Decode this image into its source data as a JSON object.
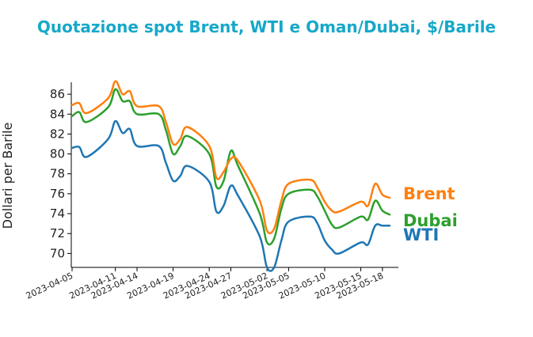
{
  "chart_data": {
    "type": "line",
    "title": "Quotazione spot Brent, WTI e Oman/Dubai, $/Barile",
    "xlabel": "",
    "ylabel": "Dollari per Barile",
    "ylim": [
      68.6,
      87.2
    ],
    "yticks": [
      70,
      72,
      74,
      76,
      78,
      80,
      82,
      84,
      86
    ],
    "grid": false,
    "legend": "inline-right-labels",
    "x_tick_labels": [
      "2023-04-05",
      "2023-04-11",
      "2023-04-14",
      "2023-04-19",
      "2023-04-24",
      "2023-04-27",
      "2023-05-02",
      "2023-05-05",
      "2023-05-10",
      "2023-05-15",
      "2023-05-18"
    ],
    "x": [
      "2023-04-05",
      "2023-04-06",
      "2023-04-07",
      "2023-04-10",
      "2023-04-11",
      "2023-04-12",
      "2023-04-13",
      "2023-04-14",
      "2023-04-17",
      "2023-04-18",
      "2023-04-19",
      "2023-04-20",
      "2023-04-21",
      "2023-04-24",
      "2023-04-25",
      "2023-04-26",
      "2023-04-27",
      "2023-04-28",
      "2023-05-01",
      "2023-05-02",
      "2023-05-03",
      "2023-05-04",
      "2023-05-05",
      "2023-05-08",
      "2023-05-09",
      "2023-05-10",
      "2023-05-11",
      "2023-05-12",
      "2023-05-15",
      "2023-05-16",
      "2023-05-17",
      "2023-05-18",
      "2023-05-19"
    ],
    "series": [
      {
        "name": "Brent",
        "color": "#ff7f0e",
        "values": [
          84.9,
          85.1,
          84.1,
          85.6,
          87.3,
          86.0,
          86.3,
          84.8,
          84.8,
          83.2,
          81.0,
          81.5,
          82.7,
          80.8,
          77.6,
          78.2,
          79.5,
          79.3,
          75.3,
          72.3,
          72.5,
          75.3,
          77.0,
          77.4,
          76.6,
          75.2,
          74.3,
          74.2,
          75.2,
          74.8,
          77.0,
          75.9,
          75.6
        ]
      },
      {
        "name": "Dubai",
        "color": "#2ca02c",
        "values": [
          83.8,
          84.2,
          83.2,
          84.7,
          86.5,
          85.3,
          85.3,
          84.0,
          84.0,
          82.4,
          80.0,
          80.8,
          81.8,
          80.0,
          76.7,
          77.3,
          80.3,
          78.8,
          74.0,
          71.1,
          71.5,
          74.5,
          76.0,
          76.4,
          75.7,
          74.3,
          72.9,
          72.6,
          73.7,
          73.4,
          75.3,
          74.3,
          73.9
        ]
      },
      {
        "name": "WTI",
        "color": "#1f77b4",
        "values": [
          80.6,
          80.7,
          79.7,
          81.5,
          83.3,
          82.1,
          82.5,
          80.8,
          80.8,
          79.1,
          77.3,
          77.8,
          78.8,
          77.2,
          74.2,
          74.8,
          76.8,
          75.8,
          71.7,
          68.6,
          68.6,
          71.3,
          73.2,
          73.7,
          73.0,
          71.3,
          70.4,
          70.0,
          71.1,
          70.9,
          72.8,
          72.8,
          72.8
        ]
      }
    ]
  }
}
